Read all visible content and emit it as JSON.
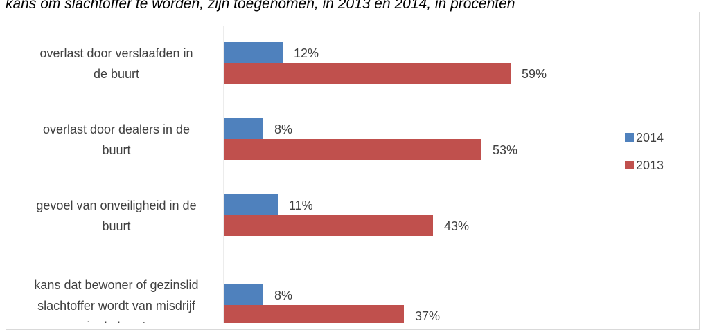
{
  "caption": "kans om slachtoffer te worden, zijn toegenomen, in 2013 en 2014, in procenten",
  "chart_data": {
    "type": "bar",
    "orientation": "horizontal",
    "categories": [
      [
        "overlast door verslaafden in",
        "de buurt"
      ],
      [
        "overlast door dealers in de",
        "buurt"
      ],
      [
        "gevoel van onveiligheid in de",
        "buurt"
      ],
      [
        "kans dat bewoner of gezinslid",
        "slachtoffer wordt van misdrijf",
        "in de buurt"
      ]
    ],
    "series": [
      {
        "name": "2014",
        "color": "#4f81bd",
        "values": [
          12,
          8,
          11,
          8
        ],
        "labels": [
          "12%",
          "8%",
          "11%",
          "8%"
        ]
      },
      {
        "name": "2013",
        "color": "#c0504d",
        "values": [
          59,
          53,
          43,
          37
        ],
        "labels": [
          "59%",
          "53%",
          "43%",
          "37%"
        ]
      }
    ],
    "xlim": [
      0,
      70
    ],
    "grid": false,
    "legend_position": "right"
  }
}
